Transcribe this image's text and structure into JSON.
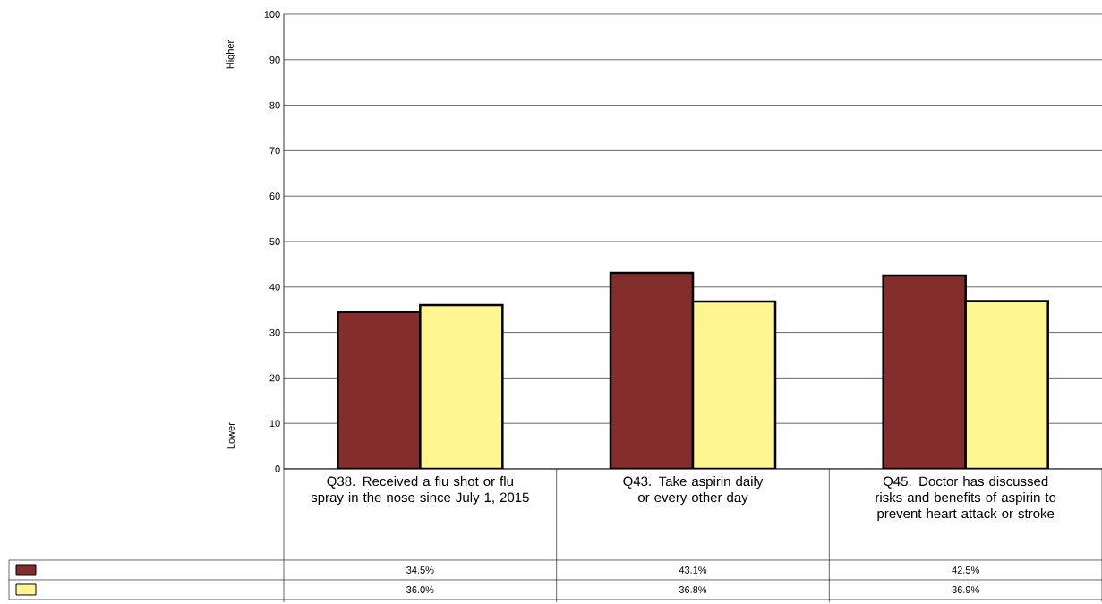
{
  "chart_data": {
    "type": "bar",
    "categories": [
      "Q38. Received a flu shot or flu spray in the nose since July 1, 2015",
      "Q43. Take aspirin daily or every other day",
      "Q45. Doctor has discussed risks and benefits of aspirin to prevent heart attack or stroke"
    ],
    "series": [
      {
        "color": "#842d2d",
        "values": [
          34.5,
          43.1,
          42.5
        ],
        "value_labels": [
          "34.5%",
          "43.1%",
          "42.5%"
        ]
      },
      {
        "color": "#fff68f",
        "values": [
          36.0,
          36.8,
          36.9
        ],
        "value_labels": [
          "36.0%",
          "36.8%",
          "36.9%"
        ]
      }
    ],
    "ylim": [
      0,
      100
    ],
    "yticks": [
      0,
      10,
      20,
      30,
      40,
      50,
      60,
      70,
      80,
      90,
      100
    ],
    "grid": "y",
    "annotations": [
      "Higher",
      "Lower"
    ]
  }
}
